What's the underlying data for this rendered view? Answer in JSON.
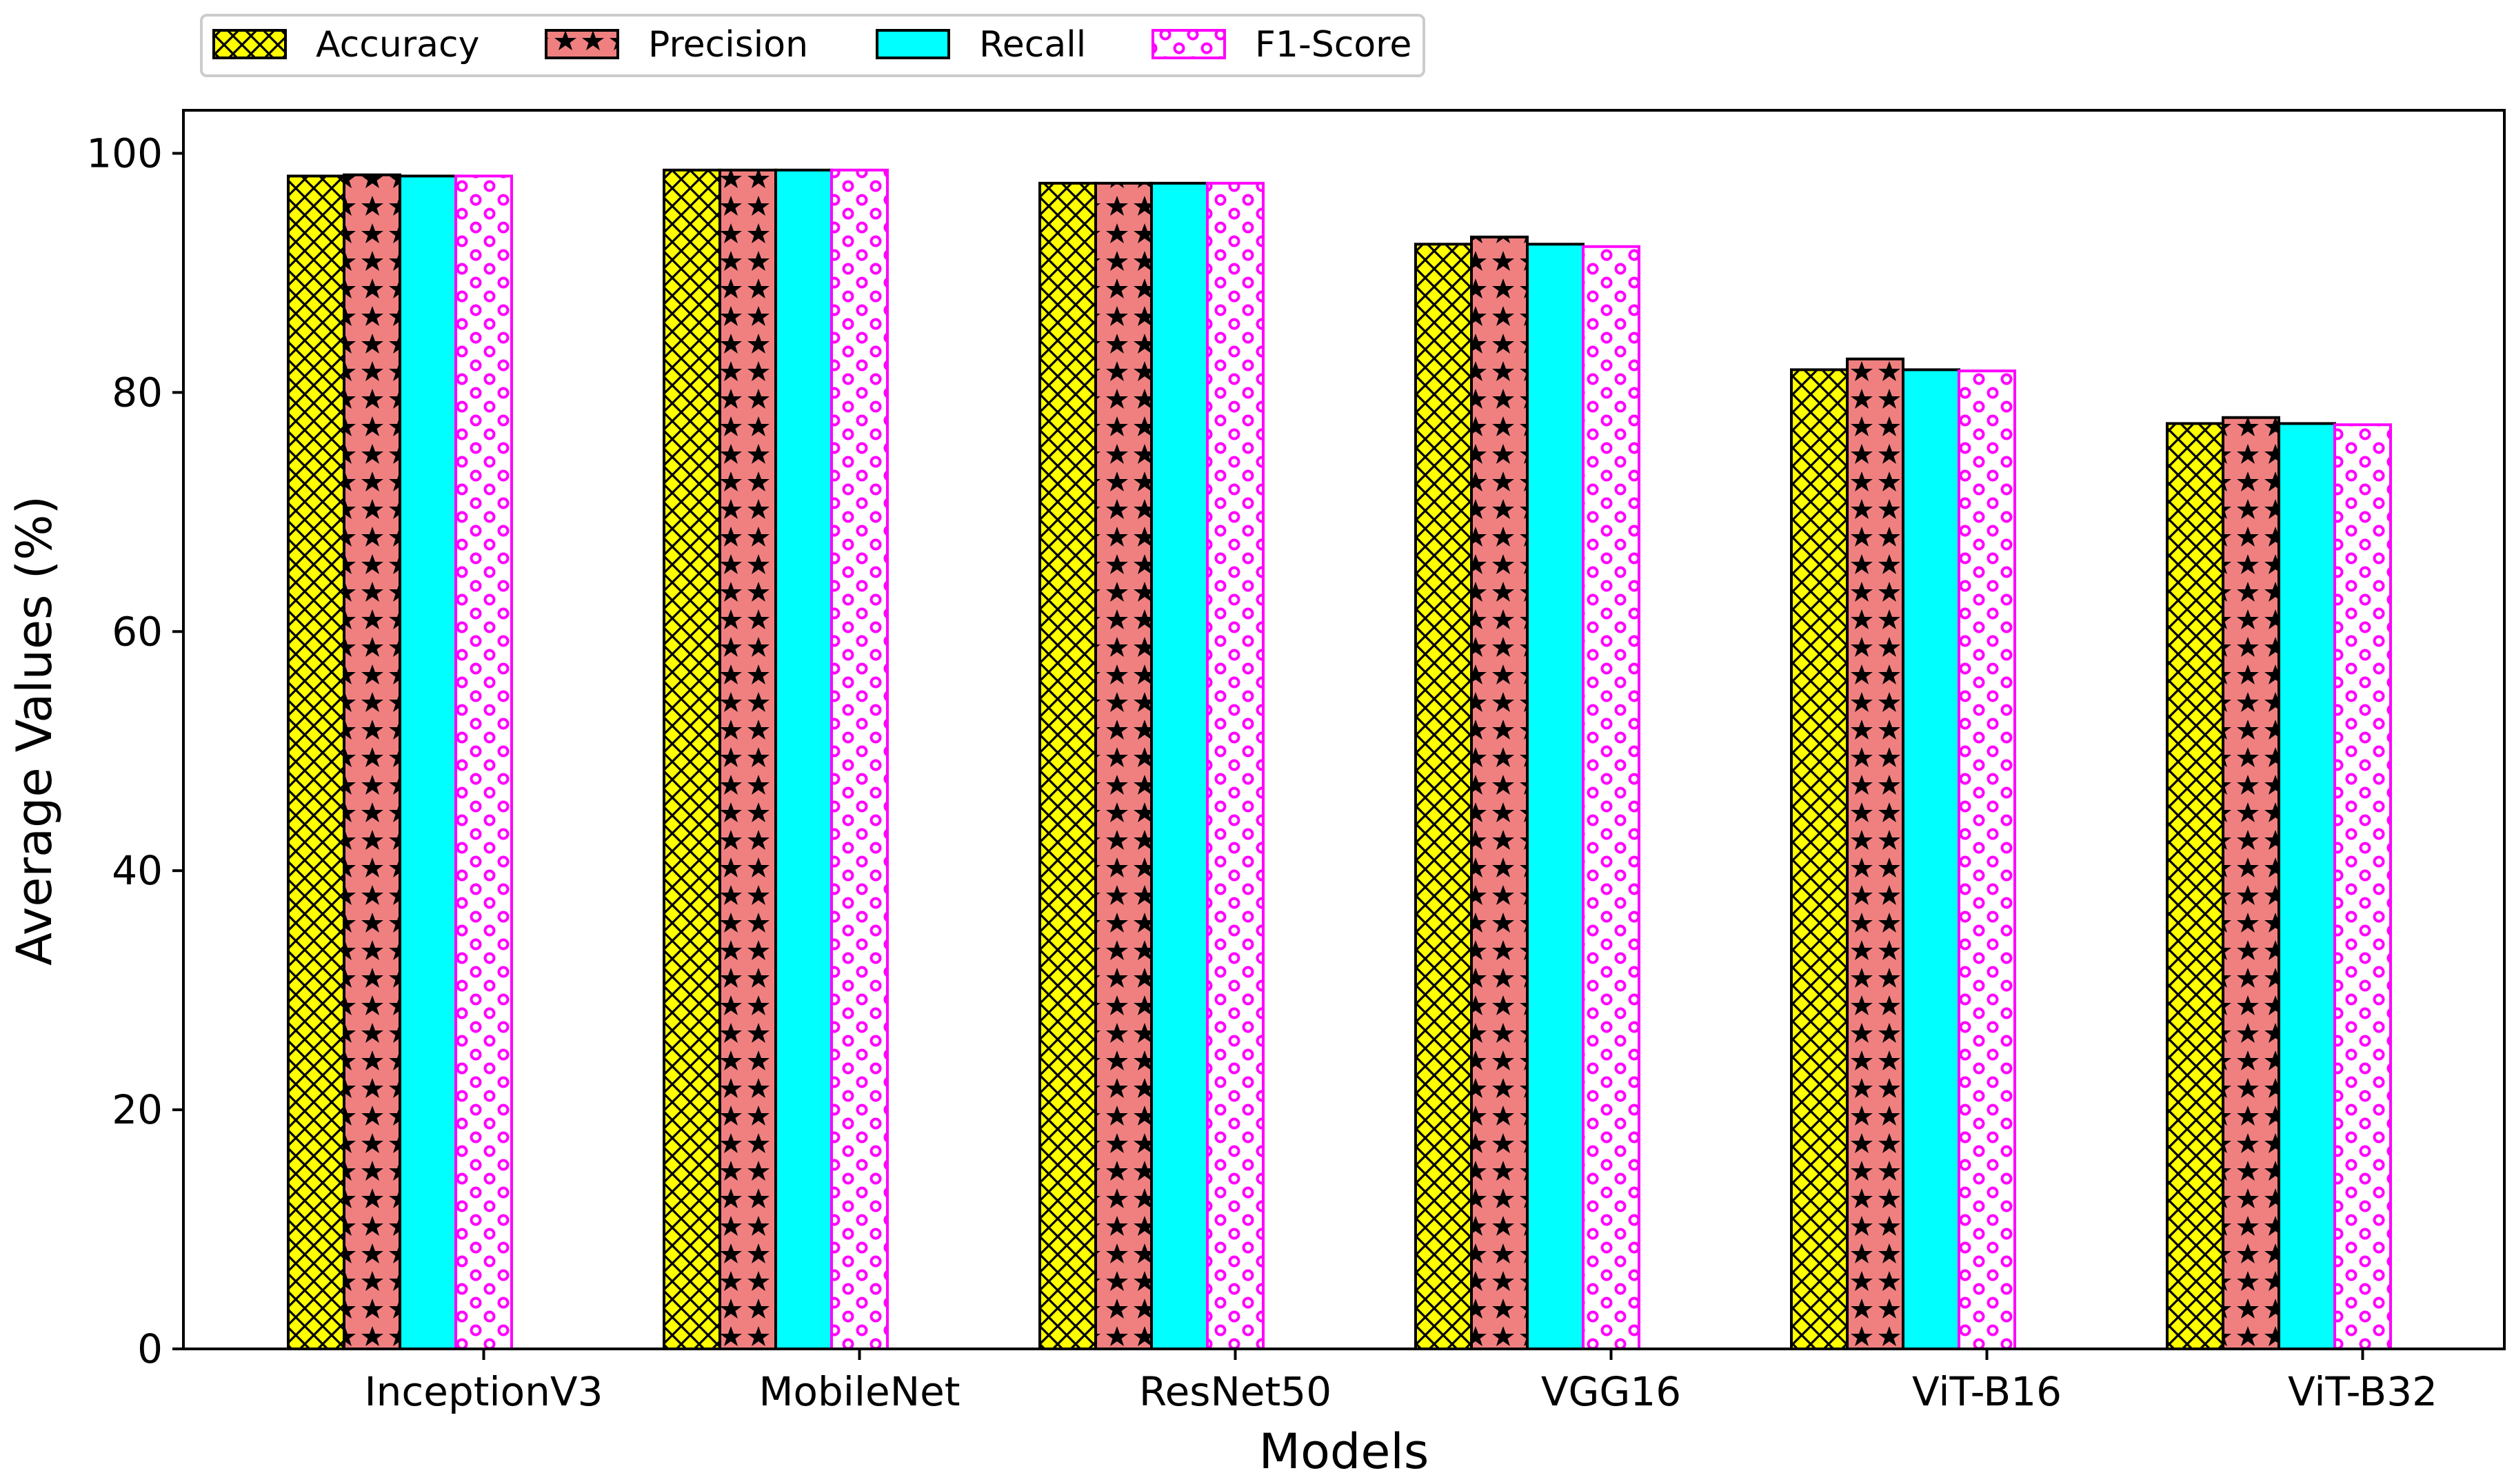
{
  "chart_data": {
    "type": "bar",
    "xlabel": "Models",
    "ylabel": "Average Values (%)",
    "categories": [
      "InceptionV3",
      "MobileNet",
      "ResNet50",
      "VGG16",
      "ViT-B16",
      "ViT-B32"
    ],
    "series": [
      {
        "name": "Accuracy",
        "values": [
          98.1,
          98.6,
          97.5,
          92.4,
          81.9,
          77.4
        ],
        "color": "#ffff00",
        "pattern": "crosshatch",
        "edge_color": "#000000"
      },
      {
        "name": "Precision",
        "values": [
          98.2,
          98.6,
          97.5,
          93.0,
          82.8,
          77.9
        ],
        "color": "#f08080",
        "pattern": "stars",
        "edge_color": "#000000"
      },
      {
        "name": "Recall",
        "values": [
          98.1,
          98.6,
          97.5,
          92.4,
          81.9,
          77.4
        ],
        "color": "#00ffff",
        "pattern": "solid",
        "edge_color": "#000000"
      },
      {
        "name": "F1-Score",
        "values": [
          98.1,
          98.6,
          97.5,
          92.2,
          81.8,
          77.3
        ],
        "color": "#ffffff",
        "pattern": "dots",
        "edge_color": "#ff00ff"
      }
    ],
    "ylim": [
      0,
      103.6
    ],
    "yticks": [
      0,
      20,
      40,
      60,
      80,
      100
    ],
    "grid": false,
    "legend_position": "top-left, above plot"
  }
}
